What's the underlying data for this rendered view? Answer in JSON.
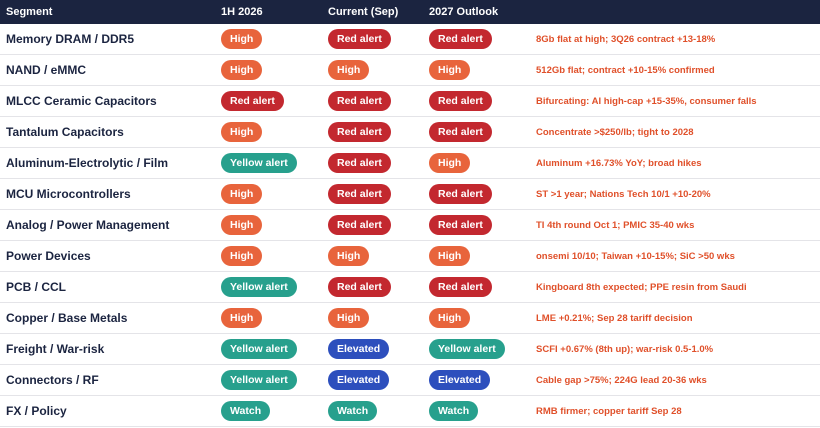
{
  "table": {
    "headers": [
      "Segment",
      "1H 2026",
      "Current (Sep)",
      "2027 Outlook"
    ],
    "rows": [
      [
        "Memory DRAM / DDR5",
        {
          "label": "High",
          "color": "#e8643c"
        },
        {
          "label": "Red alert",
          "color": "#c3282f"
        },
        {
          "label": "Red alert",
          "color": "#c3282f"
        },
        "8Gb flat at high; 3Q26 contract +13-18%"
      ],
      [
        "NAND / eMMC",
        {
          "label": "High",
          "color": "#e8643c"
        },
        {
          "label": "High",
          "color": "#e8643c"
        },
        {
          "label": "High",
          "color": "#e8643c"
        },
        "512Gb flat; contract +10-15% confirmed"
      ],
      [
        "MLCC Ceramic Capacitors",
        {
          "label": "Red alert",
          "color": "#c3282f"
        },
        {
          "label": "Red alert",
          "color": "#c3282f"
        },
        {
          "label": "Red alert",
          "color": "#c3282f"
        },
        "Bifurcating: AI high-cap +15-35%, consumer falls"
      ],
      [
        "Tantalum Capacitors",
        {
          "label": "High",
          "color": "#e8643c"
        },
        {
          "label": "Red alert",
          "color": "#c3282f"
        },
        {
          "label": "Red alert",
          "color": "#c3282f"
        },
        "Concentrate >$250/lb; tight to 2028"
      ],
      [
        "Aluminum-Electrolytic / Film",
        {
          "label": "Yellow alert",
          "color": "#27a08d"
        },
        {
          "label": "Red alert",
          "color": "#c3282f"
        },
        {
          "label": "High",
          "color": "#e8643c"
        },
        "Aluminum +16.73% YoY; broad hikes"
      ],
      [
        "MCU Microcontrollers",
        {
          "label": "High",
          "color": "#e8643c"
        },
        {
          "label": "Red alert",
          "color": "#c3282f"
        },
        {
          "label": "Red alert",
          "color": "#c3282f"
        },
        "ST >1 year; Nations Tech 10/1 +10-20%"
      ],
      [
        "Analog / Power Management",
        {
          "label": "High",
          "color": "#e8643c"
        },
        {
          "label": "Red alert",
          "color": "#c3282f"
        },
        {
          "label": "Red alert",
          "color": "#c3282f"
        },
        "TI 4th round Oct 1; PMIC 35-40 wks"
      ],
      [
        "Power Devices",
        {
          "label": "High",
          "color": "#e8643c"
        },
        {
          "label": "High",
          "color": "#e8643c"
        },
        {
          "label": "High",
          "color": "#e8643c"
        },
        "onsemi 10/10; Taiwan +10-15%; SiC >50 wks"
      ],
      [
        "PCB / CCL",
        {
          "label": "Yellow alert",
          "color": "#27a08d"
        },
        {
          "label": "Red alert",
          "color": "#c3282f"
        },
        {
          "label": "Red alert",
          "color": "#c3282f"
        },
        "Kingboard 8th expected; PPE resin from Saudi"
      ],
      [
        "Copper / Base Metals",
        {
          "label": "High",
          "color": "#e8643c"
        },
        {
          "label": "High",
          "color": "#e8643c"
        },
        {
          "label": "High",
          "color": "#e8643c"
        },
        "LME +0.21%; Sep 28 tariff decision"
      ],
      [
        "Freight / War-risk",
        {
          "label": "Yellow alert",
          "color": "#27a08d"
        },
        {
          "label": "Elevated",
          "color": "#2d4fbd"
        },
        {
          "label": "Yellow alert",
          "color": "#27a08d"
        },
        "SCFI +0.67% (8th up); war-risk 0.5-1.0%"
      ],
      [
        "Connectors / RF",
        {
          "label": "Yellow alert",
          "color": "#27a08d"
        },
        {
          "label": "Elevated",
          "color": "#2d4fbd"
        },
        {
          "label": "Elevated",
          "color": "#2d4fbd"
        },
        "Cable gap >75%; 224G lead 20-36 wks"
      ],
      [
        "FX / Policy",
        {
          "label": "Watch",
          "color": "#27a08d"
        },
        {
          "label": "Watch",
          "color": "#27a08d"
        },
        {
          "label": "Watch",
          "color": "#27a08d"
        },
        "RMB firmer; copper tariff Sep 28"
      ]
    ]
  }
}
